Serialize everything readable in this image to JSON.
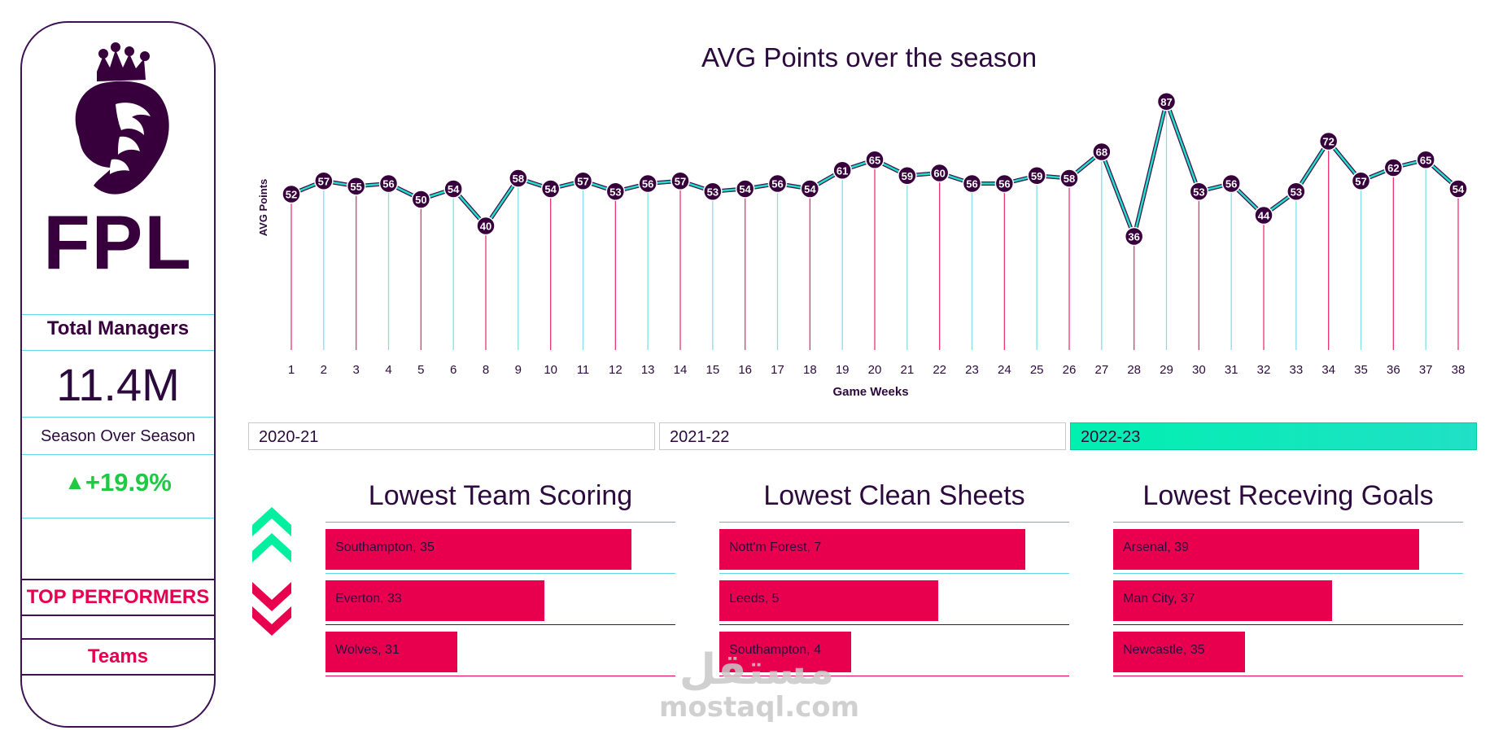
{
  "sidebar": {
    "logo_text": "FPL",
    "total_managers_label": "Total Managers",
    "total_managers_value": "11.4M",
    "season_over_season_label": "Season Over Season",
    "season_over_season_value": "+19.9%",
    "nav": [
      "TOP PERFORMERS",
      "Teams"
    ]
  },
  "colors": {
    "brand_purple": "#37003c",
    "accent_pink": "#e8004f",
    "accent_green": "#00f0b0",
    "accent_cyan": "#61d8e3",
    "positive_green": "#20c843"
  },
  "chart_data": {
    "type": "line",
    "title": "AVG Points over the season",
    "xlabel": "Game Weeks",
    "ylabel": "AVG Points",
    "x": [
      1,
      2,
      3,
      4,
      5,
      6,
      8,
      9,
      10,
      11,
      12,
      13,
      14,
      15,
      16,
      17,
      18,
      19,
      20,
      21,
      22,
      23,
      24,
      25,
      26,
      27,
      28,
      29,
      30,
      31,
      32,
      33,
      34,
      35,
      36,
      37,
      38
    ],
    "values": [
      52,
      57,
      55,
      56,
      50,
      54,
      40,
      58,
      54,
      57,
      53,
      56,
      57,
      53,
      54,
      56,
      54,
      61,
      65,
      59,
      60,
      56,
      56,
      59,
      58,
      68,
      36,
      87,
      53,
      56,
      44,
      53,
      72,
      57,
      62,
      65,
      54
    ]
  },
  "season_filter": {
    "options": [
      "2020-21",
      "2021-22",
      "2022-23"
    ],
    "selected": "2022-23"
  },
  "panels": [
    {
      "title": "Lowest Team Scoring",
      "items": [
        {
          "label": "Southampton,  35",
          "value": 35
        },
        {
          "label": "Everton, 33",
          "value": 33
        },
        {
          "label": "Wolves, 31",
          "value": 31
        }
      ]
    },
    {
      "title": "Lowest Clean Sheets",
      "items": [
        {
          "label": "Nott'm Forest, 7",
          "value": 7
        },
        {
          "label": "Leeds, 5",
          "value": 5
        },
        {
          "label": "Southampton,  4",
          "value": 4
        }
      ]
    },
    {
      "title": "Lowest Receving Goals",
      "items": [
        {
          "label": "Arsenal, 39",
          "value": 39
        },
        {
          "label": "Man City, 37",
          "value": 37
        },
        {
          "label": "Newcastle, 35",
          "value": 35
        }
      ]
    }
  ],
  "icons": {
    "up": "double-chevron-up-icon",
    "down": "double-chevron-down-icon"
  },
  "watermark": {
    "arabic": "مستقل",
    "latin": "mostaql.com"
  }
}
